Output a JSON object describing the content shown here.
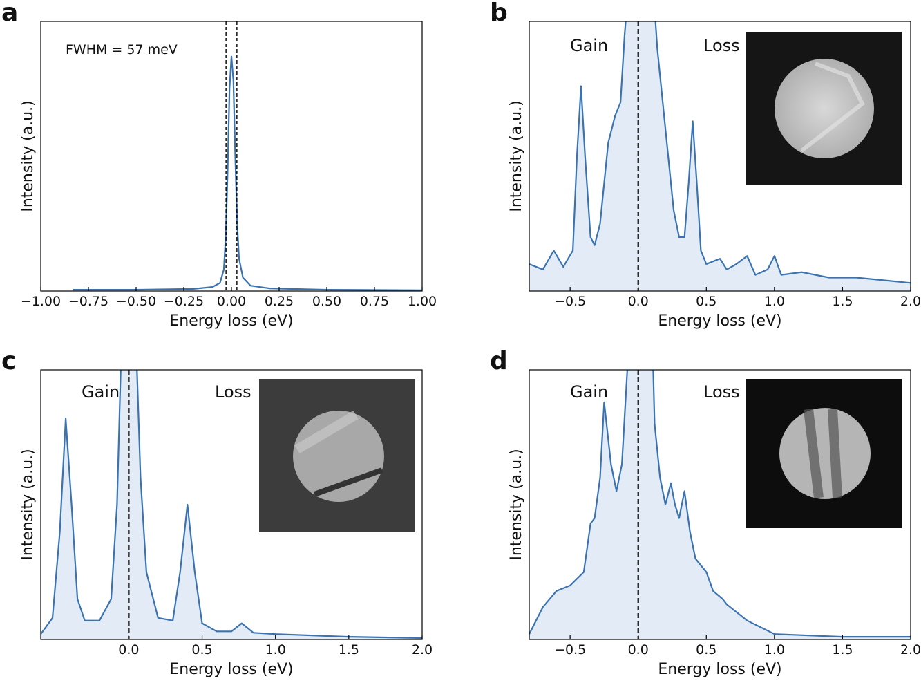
{
  "chart_data": [
    {
      "type": "line",
      "panel": "a",
      "xlabel": "Energy loss (eV)",
      "ylabel": "Intensity (a.u.)",
      "annotations": [
        "FWHM = 57 meV"
      ],
      "color": "#3a73b0",
      "x": [
        -0.83,
        -0.5,
        -0.2,
        -0.1,
        -0.06,
        -0.04,
        -0.03,
        -0.02,
        -0.01,
        0,
        0.01,
        0.02,
        0.03,
        0.04,
        0.06,
        0.1,
        0.2,
        0.5,
        1.0
      ],
      "values": [
        0.005,
        0.005,
        0.008,
        0.015,
        0.03,
        0.08,
        0.2,
        0.45,
        0.75,
        0.87,
        0.78,
        0.5,
        0.25,
        0.12,
        0.05,
        0.02,
        0.01,
        0.005,
        0.003
      ],
      "vlines": [
        -0.0285,
        0.0285
      ],
      "fill": false,
      "xlim": [
        -1,
        1
      ],
      "ylim": [
        0,
        1
      ],
      "xticks": [
        {
          "value": -1,
          "label": "−1.00"
        },
        {
          "value": -0.75,
          "label": "−0.75"
        },
        {
          "value": -0.5,
          "label": "−0.50"
        },
        {
          "value": -0.25,
          "label": "−0.25"
        },
        {
          "value": 0,
          "label": "0.00"
        },
        {
          "value": 0.25,
          "label": "0.25"
        },
        {
          "value": 0.5,
          "label": "0.50"
        },
        {
          "value": 0.75,
          "label": "0.75"
        },
        {
          "value": 1,
          "label": "1.00"
        }
      ]
    },
    {
      "type": "line",
      "panel": "b",
      "xlabel": "Energy loss (eV)",
      "ylabel": "Intensity (a.u.)",
      "annotations": [
        "Gain",
        "Loss"
      ],
      "color": "#3a73b0",
      "x": [
        -0.8,
        -0.7,
        -0.62,
        -0.55,
        -0.48,
        -0.45,
        -0.42,
        -0.39,
        -0.35,
        -0.32,
        -0.28,
        -0.22,
        -0.17,
        -0.13,
        -0.1,
        -0.06,
        0.1,
        0.14,
        0.18,
        0.22,
        0.26,
        0.3,
        0.34,
        0.37,
        0.4,
        0.43,
        0.46,
        0.5,
        0.6,
        0.65,
        0.72,
        0.8,
        0.86,
        0.95,
        1.0,
        1.05,
        1.2,
        1.4,
        1.6,
        1.8,
        2.0
      ],
      "values": [
        0.1,
        0.08,
        0.15,
        0.09,
        0.15,
        0.5,
        0.76,
        0.5,
        0.2,
        0.17,
        0.25,
        0.55,
        0.65,
        0.7,
        0.95,
        1.2,
        1.2,
        0.9,
        0.7,
        0.5,
        0.3,
        0.2,
        0.2,
        0.4,
        0.63,
        0.4,
        0.15,
        0.1,
        0.12,
        0.08,
        0.1,
        0.13,
        0.06,
        0.08,
        0.13,
        0.06,
        0.07,
        0.05,
        0.05,
        0.04,
        0.03
      ],
      "vlines": [
        0
      ],
      "fill": true,
      "xlim": [
        -0.8,
        2.0
      ],
      "ylim": [
        0,
        1
      ],
      "xticks": [
        {
          "value": -0.5,
          "label": "−0.5"
        },
        {
          "value": 0,
          "label": "0.0"
        },
        0.5,
        {
          "value": 1,
          "label": "1.0"
        },
        1.5,
        {
          "value": 2,
          "label": "2.0"
        }
      ]
    },
    {
      "type": "line",
      "panel": "c",
      "xlabel": "Energy loss (eV)",
      "ylabel": "Intensity (a.u.)",
      "annotations": [
        "Gain",
        "Loss"
      ],
      "color": "#3a73b0",
      "x": [
        -0.6,
        -0.52,
        -0.47,
        -0.43,
        -0.39,
        -0.35,
        -0.3,
        -0.2,
        -0.12,
        -0.08,
        -0.05,
        0.05,
        0.08,
        0.12,
        0.2,
        0.3,
        0.35,
        0.4,
        0.45,
        0.5,
        0.6,
        0.7,
        0.77,
        0.85,
        1.0,
        1.5,
        2.0
      ],
      "values": [
        0.02,
        0.08,
        0.4,
        0.82,
        0.5,
        0.15,
        0.07,
        0.07,
        0.15,
        0.5,
        1.1,
        1.1,
        0.6,
        0.25,
        0.08,
        0.07,
        0.25,
        0.5,
        0.25,
        0.06,
        0.03,
        0.03,
        0.06,
        0.025,
        0.02,
        0.01,
        0.005
      ],
      "vlines": [
        0
      ],
      "fill": true,
      "xlim": [
        -0.6,
        2.0
      ],
      "ylim": [
        0,
        1
      ],
      "xticks": [
        {
          "value": 0,
          "label": "0.0"
        },
        0.5,
        {
          "value": 1,
          "label": "1.0"
        },
        1.5,
        {
          "value": 2,
          "label": "2.0"
        }
      ]
    },
    {
      "type": "line",
      "panel": "d",
      "xlabel": "Energy loss (eV)",
      "ylabel": "Intensity (a.u.)",
      "annotations": [
        "Gain",
        "Loss"
      ],
      "color": "#3a73b0",
      "x": [
        -0.8,
        -0.7,
        -0.6,
        -0.5,
        -0.4,
        -0.35,
        -0.32,
        -0.28,
        -0.25,
        -0.2,
        -0.16,
        -0.12,
        -0.08,
        -0.05,
        0.1,
        0.12,
        0.16,
        0.2,
        0.24,
        0.27,
        0.3,
        0.34,
        0.38,
        0.42,
        0.5,
        0.55,
        0.62,
        0.65,
        0.8,
        1.0,
        1.5,
        2.0
      ],
      "values": [
        0.02,
        0.12,
        0.18,
        0.2,
        0.25,
        0.43,
        0.45,
        0.6,
        0.88,
        0.65,
        0.55,
        0.65,
        1.0,
        1.2,
        1.2,
        0.8,
        0.6,
        0.5,
        0.58,
        0.5,
        0.45,
        0.55,
        0.4,
        0.3,
        0.25,
        0.18,
        0.15,
        0.13,
        0.07,
        0.02,
        0.01,
        0.01
      ],
      "vlines": [
        0
      ],
      "fill": true,
      "xlim": [
        -0.8,
        2.0
      ],
      "ylim": [
        0,
        1
      ],
      "xticks": [
        {
          "value": -0.5,
          "label": "−0.5"
        },
        {
          "value": 0,
          "label": "0.0"
        },
        0.5,
        {
          "value": 1,
          "label": "1.0"
        },
        1.5,
        {
          "value": 2,
          "label": "2.0"
        }
      ]
    }
  ]
}
